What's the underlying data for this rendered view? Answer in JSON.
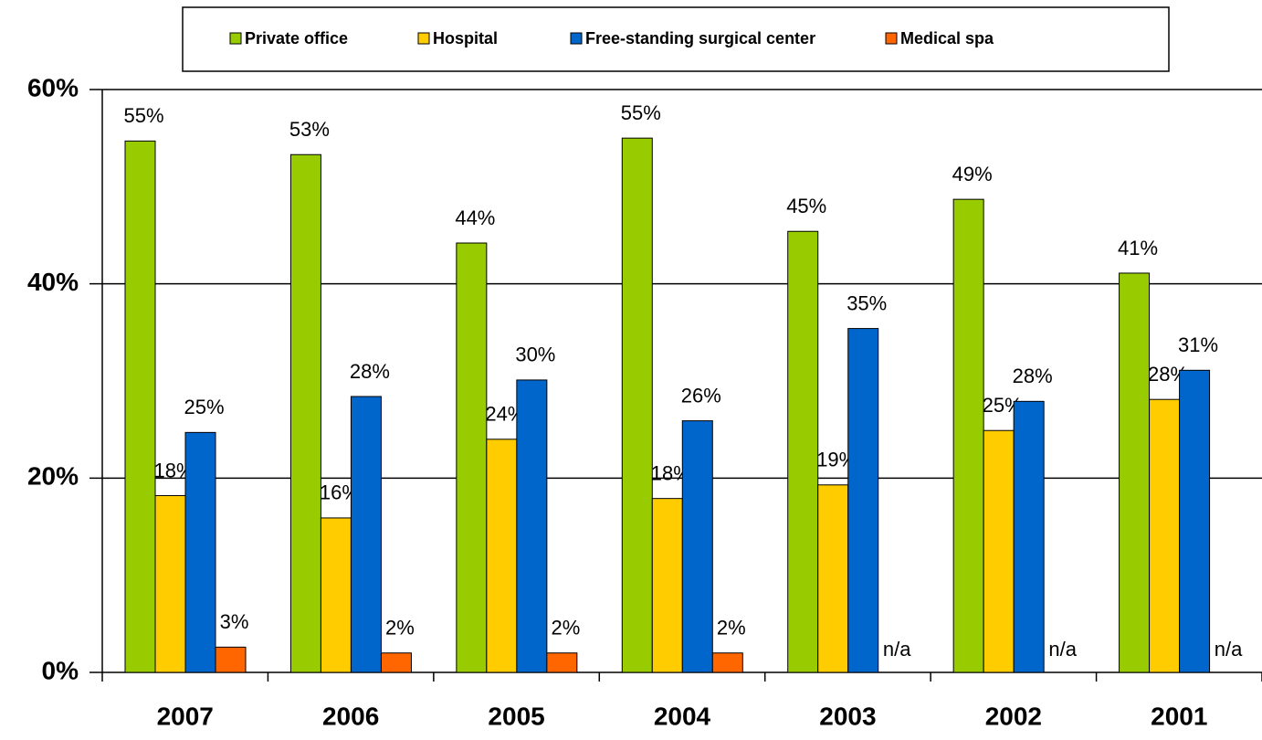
{
  "chart_data": {
    "type": "bar",
    "categories": [
      "2007",
      "2006",
      "2005",
      "2004",
      "2003",
      "2002",
      "2001"
    ],
    "series": [
      {
        "name": "Private office",
        "color": "#99cc00",
        "values": [
          54.7,
          53.3,
          44.2,
          55.0,
          45.4,
          48.7,
          41.1
        ],
        "value_labels": [
          "55%",
          "53%",
          "44%",
          "55%",
          "45%",
          "49%",
          "41%"
        ]
      },
      {
        "name": "Hospital",
        "color": "#ffcc00",
        "values": [
          18.2,
          15.9,
          24.0,
          17.9,
          19.3,
          24.9,
          28.1
        ],
        "value_labels": [
          "18%",
          "16%",
          "24%",
          "18%",
          "19%",
          "25%",
          "28%"
        ]
      },
      {
        "name": "Free-standing surgical center",
        "color": "#0066cc",
        "values": [
          24.7,
          28.4,
          30.1,
          25.9,
          35.4,
          27.9,
          31.1
        ],
        "value_labels": [
          "25%",
          "28%",
          "30%",
          "26%",
          "35%",
          "28%",
          "31%"
        ]
      },
      {
        "name": "Medical spa",
        "color": "#ff6600",
        "values": [
          2.6,
          2.0,
          2.0,
          2.0,
          null,
          null,
          null
        ],
        "value_labels": [
          "3%",
          "2%",
          "2%",
          "2%",
          "n/a",
          "n/a",
          "n/a"
        ]
      }
    ],
    "ylim": [
      0,
      60
    ],
    "yticks": [
      {
        "value": 0,
        "label": "0%"
      },
      {
        "value": 20,
        "label": "20%"
      },
      {
        "value": 40,
        "label": "40%"
      },
      {
        "value": 60,
        "label": "60%"
      }
    ],
    "grid": true,
    "legend": "top"
  }
}
